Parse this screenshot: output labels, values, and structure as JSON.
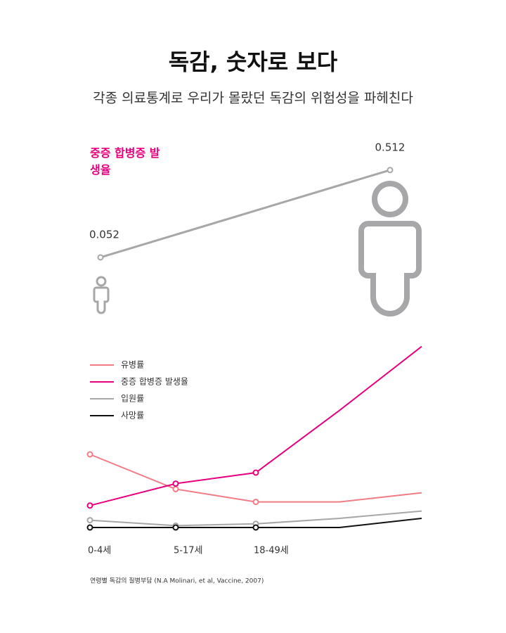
{
  "header": {
    "title": "독감, 숫자로 보다",
    "subtitle": "각종 의료통계로 우리가 몰랐던 독감의 위험성을 파헤친다"
  },
  "chart_data": [
    {
      "type": "line",
      "title": "중증 합병증 발생율",
      "categories": [
        null,
        null
      ],
      "series": [
        {
          "name": "중증 합병증 발생율",
          "color": "#a7a7a9",
          "values": [
            0.052,
            0.512
          ]
        }
      ],
      "data_labels": true,
      "ylim": [
        0,
        0.6
      ],
      "title_color": "#e6007e"
    },
    {
      "type": "line",
      "categories": [
        "0-4세",
        "5-17세",
        "18-49세",
        null,
        null
      ],
      "series": [
        {
          "name": "유병률",
          "color": "#f17c85",
          "values": [
            40,
            21,
            14,
            14,
            19
          ]
        },
        {
          "name": "중증 합병증 발생율",
          "color": "#e6007e",
          "values": [
            12,
            24,
            30,
            64,
            99
          ]
        },
        {
          "name": "입원률",
          "color": "#a7a7a9",
          "values": [
            4,
            1,
            2,
            5,
            9
          ]
        },
        {
          "name": "사망률",
          "color": "#111111",
          "values": [
            0,
            0,
            0,
            0,
            5
          ]
        }
      ],
      "ylim": [
        0,
        100
      ],
      "legend": "upper left",
      "source": "연령별 독감의 질병부담 (N.A Molinari, et al, Vaccine, 2007)"
    }
  ]
}
